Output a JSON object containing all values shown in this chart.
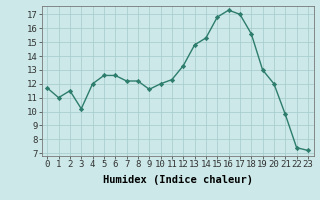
{
  "x": [
    0,
    1,
    2,
    3,
    4,
    5,
    6,
    7,
    8,
    9,
    10,
    11,
    12,
    13,
    14,
    15,
    16,
    17,
    18,
    19,
    20,
    21,
    22,
    23
  ],
  "y": [
    11.7,
    11.0,
    11.5,
    10.2,
    12.0,
    12.6,
    12.6,
    12.2,
    12.2,
    11.6,
    12.0,
    12.3,
    13.3,
    14.8,
    15.3,
    16.8,
    17.3,
    17.0,
    15.6,
    13.0,
    12.0,
    9.8,
    7.4,
    7.2
  ],
  "line_color": "#2d7d6d",
  "marker": "D",
  "marker_size": 2.2,
  "bg_color": "#cce8e8",
  "grid_color": "#aacece",
  "xlabel": "Humidex (Indice chaleur)",
  "xlim": [
    -0.5,
    23.5
  ],
  "ylim": [
    6.8,
    17.6
  ],
  "yticks": [
    7,
    8,
    9,
    10,
    11,
    12,
    13,
    14,
    15,
    16,
    17
  ],
  "xticks": [
    0,
    1,
    2,
    3,
    4,
    5,
    6,
    7,
    8,
    9,
    10,
    11,
    12,
    13,
    14,
    15,
    16,
    17,
    18,
    19,
    20,
    21,
    22,
    23
  ],
  "xlabel_fontsize": 7.5,
  "tick_fontsize": 6.5
}
